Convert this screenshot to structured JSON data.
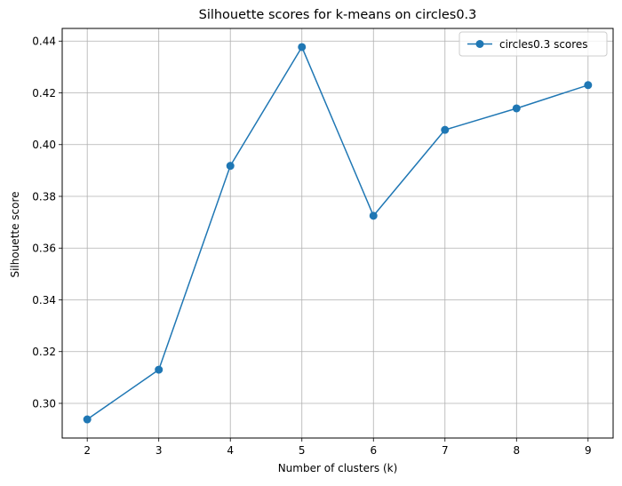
{
  "chart_data": {
    "type": "line",
    "title": "Silhouette scores for k-means on circles0.3",
    "xlabel": "Number of clusters (k)",
    "ylabel": "Silhouette score",
    "x": [
      2,
      3,
      4,
      5,
      6,
      7,
      8,
      9
    ],
    "series": [
      {
        "name": "circles0.3 scores",
        "values": [
          0.2938,
          0.313,
          0.3918,
          0.4377,
          0.3725,
          0.4057,
          0.414,
          0.423
        ],
        "color": "#1f77b4",
        "marker": "circle"
      }
    ],
    "xticks": [
      "2",
      "3",
      "4",
      "5",
      "6",
      "7",
      "8",
      "9"
    ],
    "yticks": [
      "0.30",
      "0.32",
      "0.34",
      "0.36",
      "0.38",
      "0.40",
      "0.42",
      "0.44"
    ],
    "xlim": [
      1.65,
      9.35
    ],
    "ylim": [
      0.2866,
      0.4449
    ],
    "grid": true,
    "legend": "top-right",
    "grid_color": "#b0b0b0"
  }
}
